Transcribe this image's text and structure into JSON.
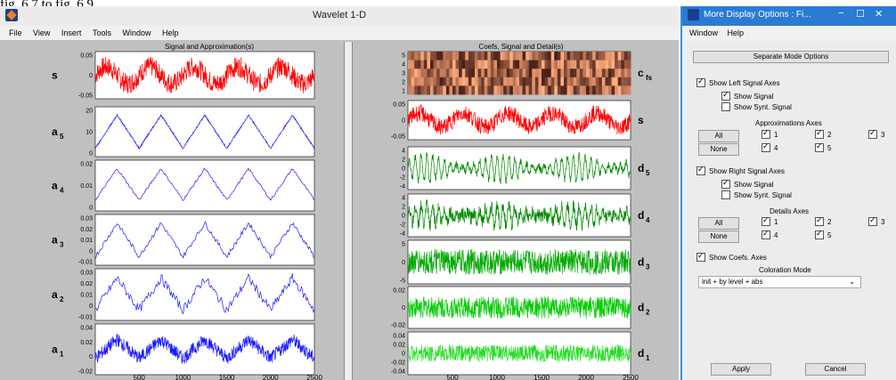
{
  "caption": "fig. 6.7 to fig. 6.9",
  "main": {
    "title": "Wavelet 1-D",
    "menu": [
      "File",
      "View",
      "Insert",
      "Tools",
      "Window",
      "Help"
    ],
    "left_title": "Signal and Approximation(s)",
    "right_title": "Coefs, Signal and Detail(s)"
  },
  "chart_data": [
    {
      "type": "line",
      "panel": "s",
      "ylabel": "s",
      "color": "#ff0000",
      "yticks": [
        "0.05",
        "0",
        "-0.05"
      ],
      "ylim": [
        -0.07,
        0.07
      ],
      "kind": "noisy-sine",
      "amp": 0.025,
      "noise": 0.03
    },
    {
      "type": "line",
      "panel": "a5",
      "ylabel": "a5",
      "color": "#1a1aff",
      "yticks": [
        "20",
        "10",
        "0"
      ],
      "ylim": [
        -5,
        25
      ],
      "kind": "tri",
      "amp": 10,
      "offset": 10,
      "noise": 0.5
    },
    {
      "type": "line",
      "panel": "a4",
      "ylabel": "a4",
      "color": "#1a1aff",
      "yticks": [
        "0.02",
        "0.01",
        "0"
      ],
      "ylim": [
        -0.012,
        0.03
      ],
      "kind": "tri",
      "amp": 0.013,
      "offset": 0.01,
      "noise": 0.001
    },
    {
      "type": "line",
      "panel": "a3",
      "ylabel": "a3",
      "color": "#1a1aff",
      "yticks": [
        "0.03",
        "0.02",
        "0.01",
        "0",
        "-0.01"
      ],
      "ylim": [
        -0.012,
        0.03
      ],
      "kind": "tri",
      "amp": 0.014,
      "offset": 0.009,
      "noise": 0.002
    },
    {
      "type": "line",
      "panel": "a2",
      "ylabel": "a2",
      "color": "#1a1aff",
      "yticks": [
        "0.03",
        "0.02",
        "0.01",
        "0",
        "-0.01"
      ],
      "ylim": [
        -0.015,
        0.03
      ],
      "kind": "tri",
      "amp": 0.014,
      "offset": 0.008,
      "noise": 0.004
    },
    {
      "type": "line",
      "panel": "a1",
      "ylabel": "a1",
      "color": "#1a1aff",
      "yticks": [
        "0.04",
        "0.02",
        "0",
        "-0.02"
      ],
      "ylim": [
        -0.03,
        0.045
      ],
      "kind": "tri",
      "amp": 0.014,
      "offset": 0.008,
      "noise": 0.01
    },
    {
      "type": "heatmap",
      "panel": "cfs",
      "ylabel": "cfs",
      "yticks": [
        "5",
        "4",
        "3",
        "2",
        "1"
      ]
    },
    {
      "type": "line",
      "panel": "s-right",
      "ylabel": "s",
      "color": "#ff0000",
      "yticks": [
        "0.05",
        "0",
        "-0.05"
      ],
      "ylim": [
        -0.07,
        0.07
      ],
      "kind": "noisy-sine",
      "amp": 0.025,
      "noise": 0.03
    },
    {
      "type": "line",
      "panel": "d5",
      "ylabel": "d5",
      "color": "#008800",
      "yticks": [
        "4",
        "2",
        "0",
        "-2",
        "-4"
      ],
      "ylim": [
        -4.5,
        4.5
      ],
      "kind": "osc",
      "amp": 2.8,
      "noise": 0.8
    },
    {
      "type": "line",
      "panel": "d4",
      "ylabel": "d4",
      "color": "#008800",
      "yticks": [
        "4",
        "2",
        "0",
        "-2",
        "-4"
      ],
      "ylim": [
        -4.5,
        4.5
      ],
      "kind": "osc",
      "amp": 2.2,
      "noise": 1.4
    },
    {
      "type": "line",
      "panel": "d3",
      "ylabel": "d3",
      "color": "#00aa00",
      "yticks": [
        "5",
        "0",
        "-5"
      ],
      "ylim": [
        -6,
        6
      ],
      "kind": "noise",
      "amp": 0,
      "noise": 3.5
    },
    {
      "type": "line",
      "panel": "d2",
      "ylabel": "d2",
      "color": "#00cc00",
      "yticks": [
        "0.02",
        "0",
        "-0.02"
      ],
      "ylim": [
        -0.025,
        0.025
      ],
      "kind": "noise",
      "amp": 0,
      "noise": 0.013
    },
    {
      "type": "line",
      "panel": "d1",
      "ylabel": "d1",
      "color": "#22dd22",
      "yticks": [
        "0.04",
        "0.02",
        "0",
        "-0.02",
        "-0.04"
      ],
      "ylim": [
        -0.045,
        0.045
      ],
      "kind": "noise",
      "amp": 0,
      "noise": 0.018
    }
  ],
  "xticks": [
    "500",
    "1000",
    "1500",
    "2000",
    "2500"
  ],
  "options": {
    "title": "More Display Options : Fi...",
    "menu": [
      "Window",
      "Help"
    ],
    "separate_btn": "Separate Mode  Options",
    "show_left": "Show Left Signal Axes",
    "show_signal": "Show Signal",
    "show_synt": "Show Synt. Signal",
    "approx_axes": "Approximations Axes",
    "all": "All",
    "none": "None",
    "n1": "1",
    "n2": "2",
    "n3": "3",
    "n4": "4",
    "n5": "5",
    "show_right": "Show Right Signal Axes",
    "details_axes": "Details Axes",
    "show_coefs": "Show Coefs. Axes",
    "coloration_mode": "Coloration Mode",
    "coloration_value": "init + by level + abs",
    "apply": "Apply",
    "cancel": "Cancel"
  }
}
